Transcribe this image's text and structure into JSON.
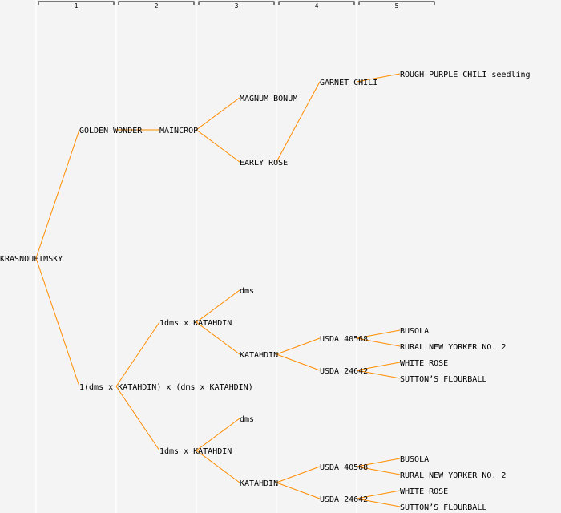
{
  "generations": [
    "1",
    "2",
    "3",
    "4",
    "5"
  ],
  "colors": {
    "link": "#ff8c00",
    "background": "#f4f4f4",
    "column": "#ffffff",
    "bracket": "#000000"
  },
  "tree": {
    "name": "KRASNOUFIMSKY",
    "children": [
      {
        "name": "GOLDEN WONDER",
        "children": [
          {
            "name": "MAINCROP",
            "children": [
              {
                "name": "MAGNUM BONUM"
              },
              {
                "name": "EARLY ROSE",
                "children": [
                  {
                    "name": "GARNET CHILI",
                    "children": [
                      {
                        "name": "ROUGH PURPLE CHILI seedling"
                      }
                    ]
                  }
                ]
              }
            ]
          }
        ]
      },
      {
        "name": "1(dms x KATAHDIN) x (dms x KATAHDIN)",
        "children": [
          {
            "name": "1dms x KATAHDIN",
            "children": [
              {
                "name": "dms"
              },
              {
                "name": "KATAHDIN",
                "children": [
                  {
                    "name": "USDA 40568",
                    "children": [
                      {
                        "name": "BUSOLA"
                      },
                      {
                        "name": "RURAL NEW YORKER NO. 2"
                      }
                    ]
                  },
                  {
                    "name": "USDA 24642",
                    "children": [
                      {
                        "name": "WHITE ROSE"
                      },
                      {
                        "name": "SUTTON’S FLOURBALL"
                      }
                    ]
                  }
                ]
              }
            ]
          },
          {
            "name": "1dms x KATAHDIN",
            "children": [
              {
                "name": "dms"
              },
              {
                "name": "KATAHDIN",
                "children": [
                  {
                    "name": "USDA 40568",
                    "children": [
                      {
                        "name": "BUSOLA"
                      },
                      {
                        "name": "RURAL NEW YORKER NO. 2"
                      }
                    ]
                  },
                  {
                    "name": "USDA 24642",
                    "children": [
                      {
                        "name": "WHITE ROSE"
                      },
                      {
                        "name": "SUTTON’S FLOURBALL"
                      }
                    ]
                  }
                ]
              }
            ]
          }
        ]
      }
    ]
  }
}
